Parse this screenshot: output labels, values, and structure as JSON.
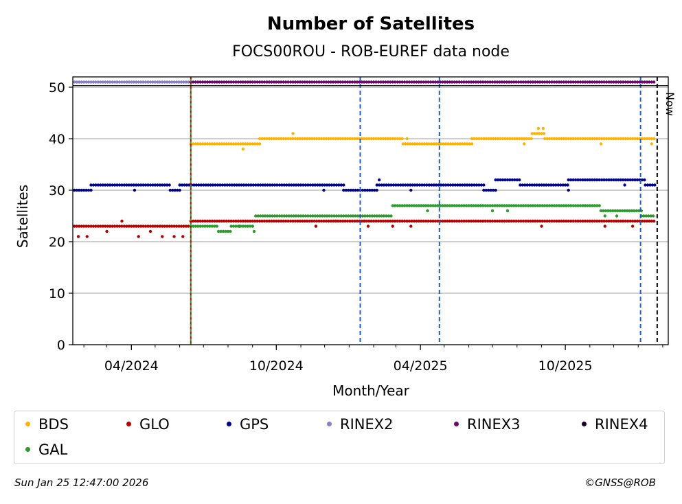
{
  "colors": {
    "BDS": "#ffb300",
    "GLO": "#b20000",
    "GPS": "#00008b",
    "RINEX2": "#8a80c2",
    "RINEX3": "#6a0a6a",
    "RINEX4": "#1a0025",
    "GAL": "#2e9a2e",
    "blue_lines": "#1f5fbf",
    "red_line": "#cc0000",
    "green_line": "#2e9a2e",
    "now_line": "#000000",
    "grid": "#b0b0b0"
  },
  "legend": [
    {
      "name": "BDS",
      "color": "#ffb300"
    },
    {
      "name": "GLO",
      "color": "#b20000"
    },
    {
      "name": "GPS",
      "color": "#00008b"
    },
    {
      "name": "RINEX2",
      "color": "#8a80c2"
    },
    {
      "name": "RINEX3",
      "color": "#6a0a6a"
    },
    {
      "name": "RINEX4",
      "color": "#1a0025"
    },
    {
      "name": "GAL",
      "color": "#2e9a2e"
    }
  ],
  "footer": {
    "timestamp": "Sun Jan 25 12:47:00 2026",
    "credit": "©GNSS@ROB"
  },
  "chart_data": {
    "type": "scatter",
    "title": "Number of Satellites",
    "subtitle": "FOCS00ROU - ROB-EUREF data node",
    "xlabel": "Month/Year",
    "ylabel": "Satellites",
    "ylim": [
      0,
      52
    ],
    "yticks": [
      0,
      10,
      20,
      30,
      40,
      50
    ],
    "xlim": [
      "2024-01-18",
      "2026-02-08"
    ],
    "xticks": [
      {
        "date": "2024-04-01",
        "label": "04/2024"
      },
      {
        "date": "2024-10-01",
        "label": "10/2024"
      },
      {
        "date": "2025-04-01",
        "label": "04/2025"
      },
      {
        "date": "2025-10-01",
        "label": "10/2025"
      }
    ],
    "grid": "y",
    "legend_position": "below",
    "now_label": "Now",
    "vlines": [
      {
        "date": "2024-06-15",
        "color": "red-green-dashed"
      },
      {
        "date": "2025-01-15",
        "color": "blue-dashed"
      },
      {
        "date": "2025-04-25",
        "color": "blue-dashed"
      },
      {
        "date": "2026-01-04",
        "color": "blue-dashed"
      },
      {
        "date": "2026-01-25",
        "color": "black-dashed",
        "label": "Now"
      }
    ],
    "series": [
      {
        "name": "BDS",
        "segments": [
          {
            "start": "2024-06-15",
            "end": "2024-09-10",
            "value": 39
          },
          {
            "start": "2024-09-10",
            "end": "2025-03-10",
            "value": 40
          },
          {
            "start": "2025-03-10",
            "end": "2025-06-05",
            "value": 39
          },
          {
            "start": "2025-06-05",
            "end": "2025-08-20",
            "value": 40
          },
          {
            "start": "2025-08-20",
            "end": "2025-09-05",
            "value": 41
          },
          {
            "start": "2025-09-05",
            "end": "2026-01-22",
            "value": 40
          }
        ],
        "outliers": [
          {
            "date": "2024-08-20",
            "value": 38
          },
          {
            "date": "2024-10-22",
            "value": 41
          },
          {
            "date": "2025-03-15",
            "value": 40
          },
          {
            "date": "2025-08-10",
            "value": 39
          },
          {
            "date": "2025-08-28",
            "value": 42
          },
          {
            "date": "2025-09-03",
            "value": 42
          },
          {
            "date": "2025-11-15",
            "value": 39
          },
          {
            "date": "2026-01-18",
            "value": 39
          }
        ]
      },
      {
        "name": "GLO",
        "segments": [
          {
            "start": "2024-01-20",
            "end": "2024-06-15",
            "value": 23
          },
          {
            "start": "2024-06-15",
            "end": "2024-12-15",
            "value": 24
          },
          {
            "start": "2024-12-15",
            "end": "2025-01-20",
            "value": 24
          },
          {
            "start": "2025-01-20",
            "end": "2026-01-22",
            "value": 24
          }
        ],
        "outliers": [
          {
            "date": "2024-01-25",
            "value": 21
          },
          {
            "date": "2024-02-05",
            "value": 21
          },
          {
            "date": "2024-03-01",
            "value": 22
          },
          {
            "date": "2024-03-20",
            "value": 24
          },
          {
            "date": "2024-04-10",
            "value": 21
          },
          {
            "date": "2024-04-25",
            "value": 22
          },
          {
            "date": "2024-05-10",
            "value": 21
          },
          {
            "date": "2024-05-25",
            "value": 21
          },
          {
            "date": "2024-06-05",
            "value": 21
          },
          {
            "date": "2024-08-15",
            "value": 23
          },
          {
            "date": "2024-09-01",
            "value": 23
          },
          {
            "date": "2024-11-20",
            "value": 23
          },
          {
            "date": "2025-01-25",
            "value": 23
          },
          {
            "date": "2025-02-25",
            "value": 23
          },
          {
            "date": "2025-03-20",
            "value": 23
          },
          {
            "date": "2025-09-01",
            "value": 23
          },
          {
            "date": "2025-11-20",
            "value": 23
          },
          {
            "date": "2025-12-25",
            "value": 23
          }
        ]
      },
      {
        "name": "GPS",
        "segments": [
          {
            "start": "2024-01-20",
            "end": "2024-02-10",
            "value": 30
          },
          {
            "start": "2024-02-10",
            "end": "2024-05-20",
            "value": 31
          },
          {
            "start": "2024-05-20",
            "end": "2024-06-01",
            "value": 30
          },
          {
            "start": "2024-06-01",
            "end": "2024-12-25",
            "value": 31
          },
          {
            "start": "2024-12-25",
            "end": "2025-02-05",
            "value": 30
          },
          {
            "start": "2025-02-05",
            "end": "2025-06-20",
            "value": 31
          },
          {
            "start": "2025-06-20",
            "end": "2025-07-05",
            "value": 30
          },
          {
            "start": "2025-07-05",
            "end": "2025-08-05",
            "value": 32
          },
          {
            "start": "2025-08-05",
            "end": "2025-10-05",
            "value": 31
          },
          {
            "start": "2025-10-05",
            "end": "2026-01-10",
            "value": 32
          },
          {
            "start": "2026-01-10",
            "end": "2026-01-22",
            "value": 31
          }
        ],
        "outliers": [
          {
            "date": "2024-04-05",
            "value": 30
          },
          {
            "date": "2024-11-30",
            "value": 30
          },
          {
            "date": "2025-02-08",
            "value": 32
          },
          {
            "date": "2025-03-20",
            "value": 30
          },
          {
            "date": "2025-10-05",
            "value": 30
          },
          {
            "date": "2025-12-15",
            "value": 31
          }
        ]
      },
      {
        "name": "GAL",
        "segments": [
          {
            "start": "2024-06-15",
            "end": "2024-07-20",
            "value": 23
          },
          {
            "start": "2024-07-20",
            "end": "2024-08-05",
            "value": 22
          },
          {
            "start": "2024-08-05",
            "end": "2024-09-01",
            "value": 23
          },
          {
            "start": "2024-09-05",
            "end": "2025-02-25",
            "value": 25
          },
          {
            "start": "2025-02-25",
            "end": "2025-11-15",
            "value": 27
          },
          {
            "start": "2025-11-15",
            "end": "2026-01-05",
            "value": 26
          },
          {
            "start": "2026-01-05",
            "end": "2026-01-22",
            "value": 25
          }
        ],
        "outliers": [
          {
            "date": "2024-09-03",
            "value": 22
          },
          {
            "date": "2025-04-10",
            "value": 26
          },
          {
            "date": "2025-07-01",
            "value": 26
          },
          {
            "date": "2025-07-20",
            "value": 26
          },
          {
            "date": "2025-11-20",
            "value": 25
          },
          {
            "date": "2025-12-05",
            "value": 25
          }
        ]
      },
      {
        "name": "RINEX2",
        "segments": [
          {
            "start": "2024-01-20",
            "end": "2024-06-15",
            "value": 51
          }
        ],
        "outliers": []
      },
      {
        "name": "RINEX3",
        "segments": [
          {
            "start": "2024-06-15",
            "end": "2026-01-22",
            "value": 51
          }
        ],
        "outliers": []
      }
    ]
  }
}
